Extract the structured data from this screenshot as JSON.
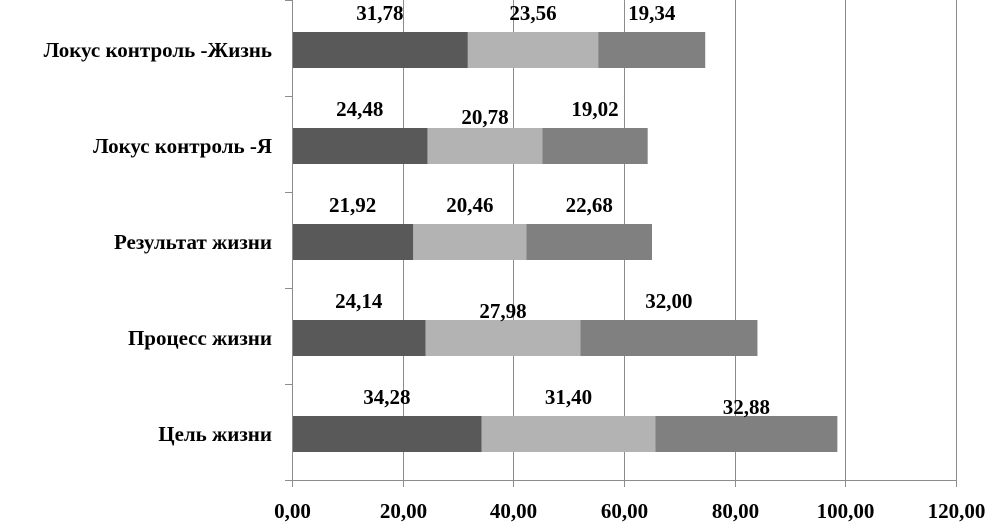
{
  "chart_data": {
    "type": "bar",
    "orientation": "horizontal",
    "stacked": true,
    "categories": [
      "Локус контроль -Жизнь",
      "Локус контроль -Я",
      "Результат жизни",
      "Процесс жизни",
      "Цель жизни"
    ],
    "series": [
      {
        "values": [
          31.78,
          24.48,
          21.92,
          24.14,
          34.28
        ],
        "labels": [
          "31,78",
          "24,48",
          "21,92",
          "24,14",
          "34,28"
        ],
        "color": "#595959"
      },
      {
        "values": [
          23.56,
          20.78,
          20.46,
          27.98,
          31.4
        ],
        "labels": [
          "23,56",
          "20,78",
          "20,46",
          "27,98",
          "31,40"
        ],
        "color": "#b3b3b3"
      },
      {
        "values": [
          19.34,
          19.02,
          22.68,
          32.0,
          32.88
        ],
        "labels": [
          "19,34",
          "19,02",
          "22,68",
          "32,00",
          "32,88"
        ],
        "color": "#808080"
      }
    ],
    "xlim": [
      0,
      120
    ],
    "x_ticks": [
      0,
      20,
      40,
      60,
      80,
      100,
      120
    ],
    "x_tick_labels": [
      "0,00",
      "20,00",
      "40,00",
      "60,00",
      "80,00",
      "100,00",
      "120,00"
    ],
    "grid": true,
    "legend": "none",
    "title": "",
    "xlabel": "",
    "ylabel": ""
  }
}
